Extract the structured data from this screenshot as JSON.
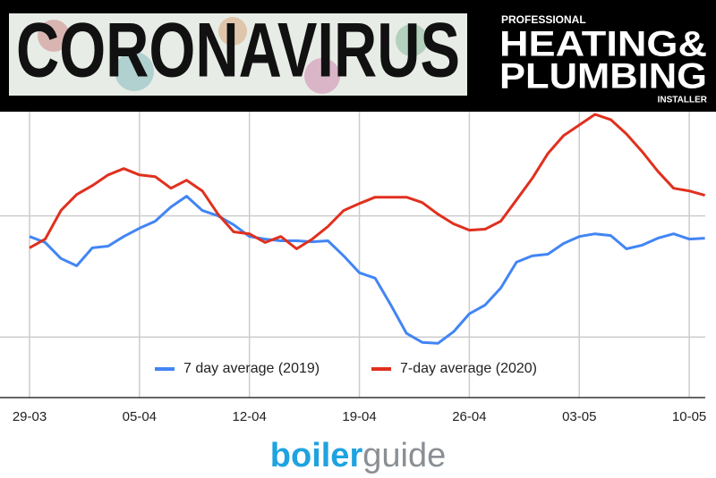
{
  "banner": {
    "title": "CORONAVIRUS",
    "brand": {
      "top": "PROFESSIONAL",
      "line1": "HEATING&",
      "line2": "PLUMBING",
      "bottom": "INSTALLER"
    }
  },
  "logo": {
    "part1": "boiler",
    "part2": "guide"
  },
  "chart_data": {
    "type": "line",
    "categories": [
      "29-03",
      null,
      null,
      null,
      null,
      null,
      null,
      "05-04",
      null,
      null,
      null,
      null,
      null,
      null,
      "12-04",
      null,
      null,
      null,
      null,
      null,
      null,
      "19-04",
      null,
      null,
      null,
      null,
      null,
      null,
      "26-04",
      null,
      null,
      null,
      null,
      null,
      null,
      "03-05",
      null,
      null,
      null,
      null,
      null,
      null,
      "10-05",
      null
    ],
    "series": [
      {
        "name": "7 day average (2019)",
        "color": "#4285f4",
        "values": [
          91.5,
          89.0,
          82.4,
          79.4,
          86.8,
          87.5,
          91.5,
          94.9,
          97.8,
          103.7,
          108.1,
          102.2,
          100,
          96.3,
          91.5,
          90.4,
          89.7,
          89.7,
          89.3,
          89.7,
          83.5,
          76.5,
          74.3,
          63.2,
          51.5,
          47.8,
          47.4,
          52.2,
          59.6,
          63.2,
          70.2,
          80.9,
          83.5,
          84.2,
          88.6,
          91.5,
          92.6,
          91.9,
          86.4,
          87.9,
          90.8,
          92.6,
          90.4,
          90.8
        ]
      },
      {
        "name": "7-day average (2020)",
        "color": "#e0301e",
        "values": [
          86.8,
          90.4,
          102.2,
          108.8,
          112.5,
          116.9,
          119.5,
          116.9,
          116.2,
          111.4,
          114.7,
          110.3,
          100.7,
          93.4,
          92.6,
          89.0,
          91.5,
          86.4,
          90.4,
          95.6,
          102.2,
          105.1,
          107.7,
          107.7,
          107.7,
          105.5,
          100.7,
          96.7,
          94.1,
          94.5,
          97.8,
          106.6,
          115.4,
          125.7,
          133.1,
          137.5,
          141.9,
          139.7,
          133.8,
          126.5,
          118.4,
          111.4,
          110.3,
          108.5
        ]
      }
    ],
    "ylim": [
      25,
      143
    ],
    "yticks": [
      50,
      100
    ],
    "grid": true,
    "legend": "bottom"
  }
}
